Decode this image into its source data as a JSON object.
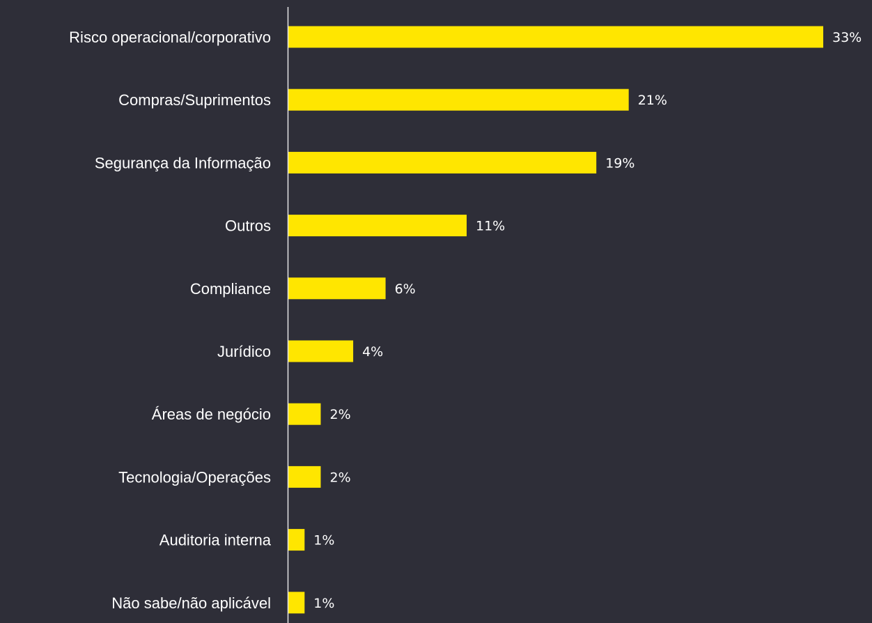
{
  "chart_data": {
    "type": "bar",
    "orientation": "horizontal",
    "categories": [
      "Risco operacional/corporativo",
      "Compras/Suprimentos",
      "Segurança da Informação",
      "Outros",
      "Compliance",
      "Jurídico",
      "Áreas de negócio",
      "Tecnologia/Operações",
      "Auditoria interna",
      "Não sabe/não aplicável"
    ],
    "values": [
      33,
      21,
      19,
      11,
      6,
      4,
      2,
      2,
      1,
      1
    ],
    "value_labels": [
      "33%",
      "21%",
      "19%",
      "11%",
      "6%",
      "4%",
      "2%",
      "2%",
      "1%",
      "1%"
    ],
    "unit": "%",
    "xlim": [
      0,
      33
    ],
    "grid": false,
    "legend": "none",
    "colors": {
      "background": "#2e2e38",
      "bar": "#ffe600",
      "axis": "#e6e6e6",
      "text": "#ffffff"
    }
  }
}
